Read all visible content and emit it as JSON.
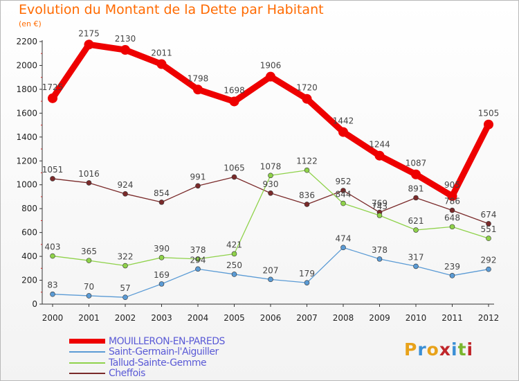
{
  "header": {
    "title": "Evolution du Montant de la Dette par Habitant",
    "unit": "(en €)"
  },
  "logo": {
    "text": "Proxiti",
    "colors": [
      "#e8a21a",
      "#3a8fd6",
      "#e8a21a",
      "#c0262a",
      "#3a8fd6",
      "#7ab62e",
      "#c0262a"
    ]
  },
  "chart_data": {
    "type": "line",
    "x": [
      "2000",
      "2001",
      "2002",
      "2003",
      "2004",
      "2005",
      "2006",
      "2007",
      "2008",
      "2009",
      "2010",
      "2011",
      "2012"
    ],
    "ylim": [
      0,
      2200
    ],
    "yticks": [
      "0",
      "200",
      "400",
      "600",
      "800",
      "1000",
      "1200",
      "1400",
      "1600",
      "1800",
      "2000",
      "2200"
    ],
    "grid": false,
    "legend_position": "bottom-left",
    "series": [
      {
        "name": "MOUILLERON-EN-PAREDS",
        "color": "#ee0000",
        "values": [
          1725,
          2175,
          2130,
          2011,
          1798,
          1698,
          1906,
          1720,
          1442,
          1244,
          1087,
          905,
          1505
        ],
        "labels": [
          "1725",
          "2175",
          "2130",
          "2011",
          "1798",
          "1698",
          "1906",
          "1720",
          "1442",
          "1244",
          "1087",
          "905",
          "1505"
        ]
      },
      {
        "name": "Saint-Germain-l'Aiguiller",
        "color": "#5b9bd5",
        "values": [
          83,
          70,
          57,
          169,
          294,
          250,
          207,
          179,
          474,
          378,
          317,
          239,
          292
        ],
        "labels": [
          "83",
          "70",
          "57",
          "169",
          "294",
          "250",
          "207",
          "179",
          "474",
          "378",
          "317",
          "239",
          "292"
        ]
      },
      {
        "name": "Tallud-Sainte-Gemme",
        "color": "#8fd24a",
        "values": [
          403,
          365,
          322,
          390,
          378,
          421,
          1078,
          1122,
          844,
          743,
          621,
          648,
          551
        ],
        "labels": [
          "403",
          "365",
          "322",
          "390",
          "378",
          "421",
          "1078",
          "1122",
          "844",
          "743",
          "621",
          "648",
          "551"
        ]
      },
      {
        "name": "Cheffois",
        "color": "#7a2a2a",
        "values": [
          1051,
          1016,
          924,
          854,
          991,
          1065,
          930,
          836,
          952,
          769,
          891,
          786,
          674
        ],
        "labels": [
          "1051",
          "1016",
          "924",
          "854",
          "991",
          "1065",
          "930",
          "836",
          "952",
          "769",
          "891",
          "786",
          "674"
        ]
      }
    ]
  }
}
